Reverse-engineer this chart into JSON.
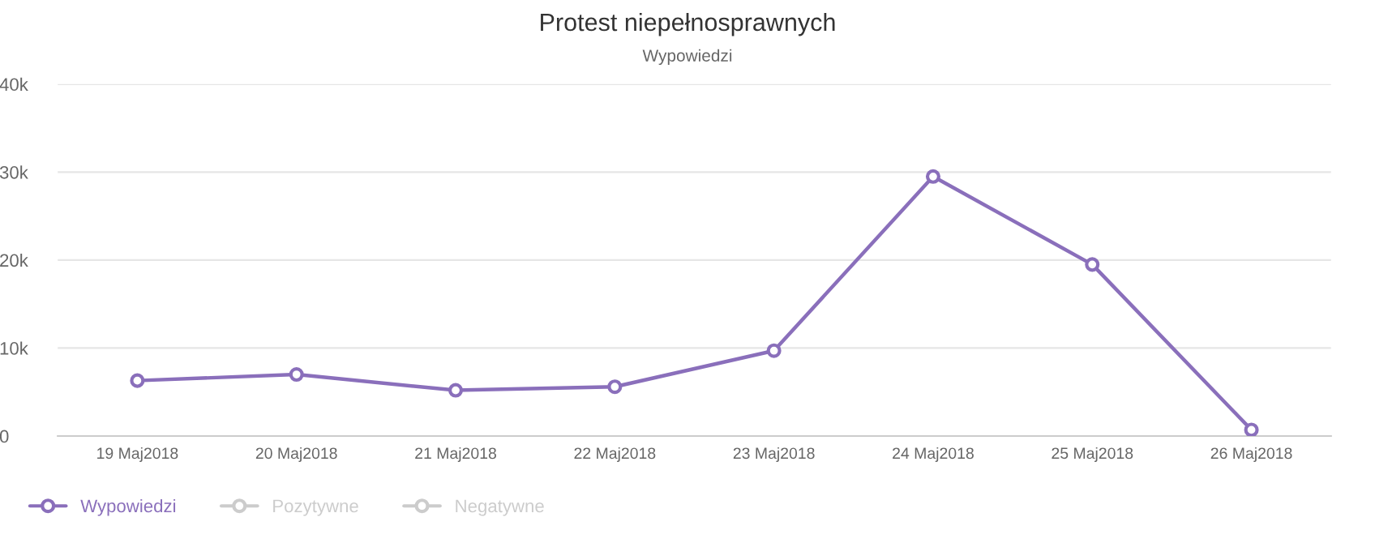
{
  "chart_data": {
    "type": "line",
    "title": "Protest niepełnosprawnych",
    "subtitle": "Wypowiedzi",
    "categories": [
      "19 Maj2018",
      "20 Maj2018",
      "21 Maj2018",
      "22 Maj2018",
      "23 Maj2018",
      "24 Maj2018",
      "25 Maj2018",
      "26 Maj2018"
    ],
    "series": [
      {
        "name": "Wypowiedzi",
        "color": "#8a6fbb",
        "values": [
          6300,
          7000,
          5200,
          5600,
          9700,
          29500,
          19500,
          700
        ]
      },
      {
        "name": "Pozytywne",
        "color": "#cccccc",
        "values": [
          null,
          null,
          null,
          null,
          null,
          null,
          null,
          null
        ]
      },
      {
        "name": "Negatywne",
        "color": "#cccccc",
        "values": [
          null,
          null,
          null,
          null,
          null,
          null,
          null,
          null
        ]
      }
    ],
    "ylim": [
      0,
      40000
    ],
    "yticks": [
      {
        "value": 0,
        "label": "0"
      },
      {
        "value": 10000,
        "label": "10k"
      },
      {
        "value": 20000,
        "label": "20k"
      },
      {
        "value": 30000,
        "label": "30k"
      },
      {
        "value": 40000,
        "label": "40k"
      }
    ],
    "grid": "y",
    "legend": "bottom left",
    "marker": "circle",
    "line_style": "solid"
  }
}
